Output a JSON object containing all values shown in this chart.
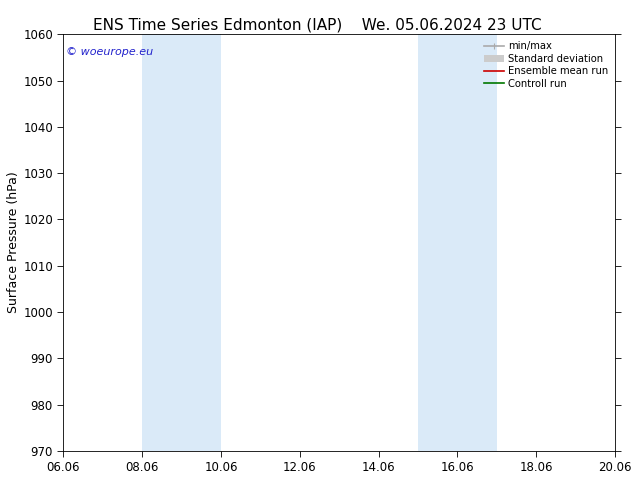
{
  "title1": "ENS Time Series Edmonton (IAP)",
  "title2": "We. 05.06.2024 23 UTC",
  "ylabel": "Surface Pressure (hPa)",
  "ylim": [
    970,
    1060
  ],
  "yticks": [
    970,
    980,
    990,
    1000,
    1010,
    1020,
    1030,
    1040,
    1050,
    1060
  ],
  "xtick_labels": [
    "06.06",
    "08.06",
    "10.06",
    "12.06",
    "14.06",
    "16.06",
    "18.06",
    "20.06"
  ],
  "xtick_positions": [
    0,
    2,
    4,
    6,
    8,
    10,
    12,
    14
  ],
  "xlim": [
    0,
    14
  ],
  "shaded_bands": [
    {
      "x_start": 2,
      "x_end": 4
    },
    {
      "x_start": 9,
      "x_end": 11
    }
  ],
  "band_color": "#daeaf8",
  "background_color": "#ffffff",
  "watermark": "© woeurope.eu",
  "watermark_color": "#2222cc",
  "legend_items": [
    {
      "label": "min/max",
      "color": "#aaaaaa",
      "lw": 1.2
    },
    {
      "label": "Standard deviation",
      "color": "#cccccc",
      "lw": 7
    },
    {
      "label": "Ensemble mean run",
      "color": "#cc0000",
      "lw": 1.2
    },
    {
      "label": "Controll run",
      "color": "#007700",
      "lw": 1.2
    }
  ],
  "title_fontsize": 11,
  "tick_fontsize": 8.5,
  "label_fontsize": 9
}
